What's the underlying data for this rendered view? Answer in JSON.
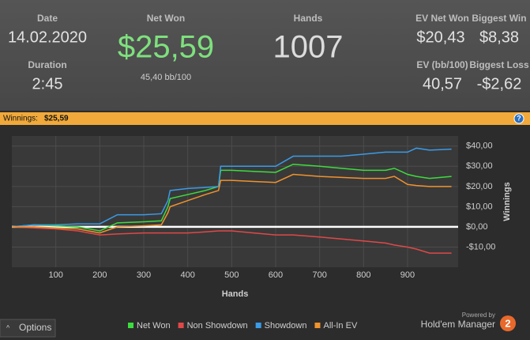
{
  "header": {
    "date": {
      "label": "Date",
      "value": "14.02.2020"
    },
    "duration": {
      "label": "Duration",
      "value": "2:45"
    },
    "net_won": {
      "label": "Net Won",
      "value": "$25,59",
      "sub": "45,40 bb/100"
    },
    "hands": {
      "label": "Hands",
      "value": "1007"
    },
    "ev_net_won": {
      "label": "EV Net Won",
      "value": "$20,43"
    },
    "biggest_win": {
      "label": "Biggest Win",
      "value": "$8,38"
    },
    "ev_bb100": {
      "label": "EV (bb/100)",
      "value": "40,57"
    },
    "biggest_loss": {
      "label": "Biggest Loss",
      "value": "-$2,62"
    }
  },
  "banner": {
    "label": "Winnings:",
    "value": "$25,59"
  },
  "chart_data": {
    "type": "line",
    "x_label": "Hands",
    "y_label": "Winnings",
    "x": [
      0,
      50,
      100,
      150,
      200,
      240,
      300,
      340,
      355,
      360,
      400,
      440,
      470,
      475,
      500,
      550,
      600,
      640,
      700,
      750,
      800,
      850,
      870,
      900,
      920,
      950,
      1000
    ],
    "series": [
      {
        "name": "Net Won",
        "color": "#3ddc3d",
        "values": [
          0,
          1,
          0.5,
          0,
          -2,
          2,
          2.5,
          3,
          10,
          14,
          16,
          18,
          20,
          28,
          28,
          27.5,
          27,
          31,
          30,
          29,
          28,
          28,
          29,
          26,
          25,
          24,
          25
        ]
      },
      {
        "name": "Non Showdown",
        "color": "#e04848",
        "values": [
          0,
          -0.5,
          -1,
          -2,
          -4,
          -3.5,
          -3,
          -3,
          -3,
          -3,
          -3,
          -2.5,
          -2,
          -2,
          -2,
          -3,
          -4,
          -4,
          -5,
          -6,
          -7,
          -8,
          -9,
          -10,
          -11,
          -13,
          -13
        ]
      },
      {
        "name": "Showdown",
        "color": "#3a9be8",
        "values": [
          0,
          1,
          1,
          1.5,
          1.5,
          6,
          6,
          6.5,
          13,
          18,
          19,
          19.5,
          20,
          30,
          30,
          30,
          30,
          35,
          35,
          35,
          36,
          37,
          37,
          37,
          39,
          38,
          38.5
        ]
      },
      {
        "name": "All-In EV",
        "color": "#f0922e",
        "values": [
          0,
          0,
          -0.5,
          -1,
          -3,
          0,
          0.5,
          1,
          7,
          10,
          13,
          16,
          18,
          23,
          23,
          22.5,
          22,
          26,
          25,
          24.5,
          24,
          24,
          25,
          21,
          20.5,
          20,
          20
        ]
      }
    ],
    "xlim": [
      0,
      1015
    ],
    "xticks": [
      100,
      200,
      300,
      400,
      500,
      600,
      700,
      800,
      900
    ],
    "ylim": [
      -20,
      45
    ],
    "yticks": [
      {
        "value": -10,
        "label": "-$10,00"
      },
      {
        "value": 0,
        "label": "$0,00"
      },
      {
        "value": 10,
        "label": "$10,00"
      },
      {
        "value": 20,
        "label": "$20,00"
      },
      {
        "value": 30,
        "label": "$30,00"
      },
      {
        "value": 40,
        "label": "$40,00"
      }
    ],
    "grid": true
  },
  "footer": {
    "options": "Options",
    "powered_by": "Powered by",
    "brand": "Hold'em Manager",
    "logo": "2"
  }
}
